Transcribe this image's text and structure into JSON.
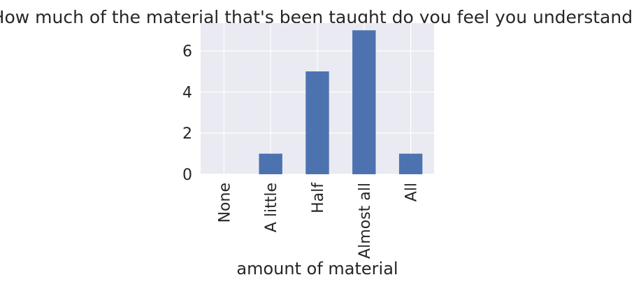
{
  "chart_data": {
    "type": "bar",
    "title": "How much of the material that's been taught do you feel you understand?",
    "xlabel": "amount of material",
    "ylabel": "",
    "categories": [
      "None",
      "A little",
      "Half",
      "Almost all",
      "All"
    ],
    "values": [
      0,
      1,
      5,
      7,
      1
    ],
    "ylim": [
      0,
      7.35
    ],
    "yticks": [
      0,
      2,
      4,
      6
    ],
    "grid": true,
    "bar_color": "#4c72b0",
    "background_color": "#eaeaf2",
    "grid_color": "#ffffff"
  }
}
